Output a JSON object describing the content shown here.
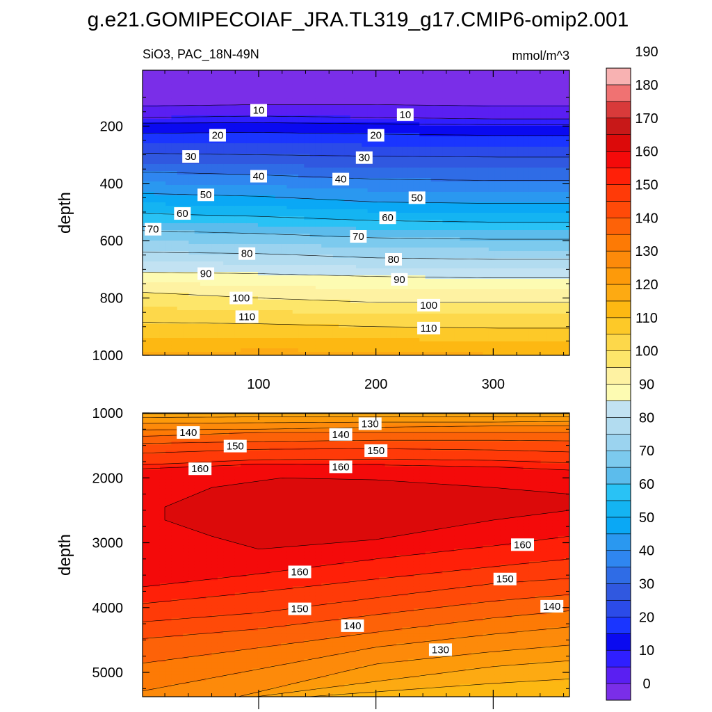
{
  "figure": {
    "title": "g.e21.GOMIPECOIAF_JRA.TL319_g17.CMIP6-omip2.001"
  },
  "chart_data": [
    {
      "type": "heatmap",
      "panel": "upper",
      "left_string": "SiO3, PAC_18N-49N",
      "right_string": "mmol/m^3",
      "ylabel": "depth",
      "xlabel": "",
      "xlim": [
        1,
        365
      ],
      "ylim": [
        1000,
        5
      ],
      "y_reversed": true,
      "x_ticks": [
        100,
        200,
        300
      ],
      "y_ticks": [
        200,
        400,
        600,
        800,
        1000
      ],
      "contour_interval": 5,
      "contour_levels_labeled": [
        10,
        20,
        30,
        40,
        50,
        60,
        70,
        80,
        90,
        100,
        110
      ],
      "isoline_depths": {
        "x": [
          1,
          100,
          200,
          300,
          365
        ],
        "levels": {
          "5": [
            130,
            125,
            125,
            130,
            130
          ],
          "10": [
            170,
            165,
            170,
            175,
            175
          ],
          "15": [
            190,
            188,
            192,
            195,
            195
          ],
          "20": [
            225,
            222,
            228,
            232,
            232
          ],
          "30": [
            295,
            300,
            305,
            308,
            308
          ],
          "40": [
            360,
            370,
            385,
            390,
            390
          ],
          "50": [
            435,
            445,
            465,
            470,
            470
          ],
          "60": [
            505,
            515,
            530,
            535,
            535
          ],
          "70": [
            565,
            575,
            590,
            595,
            595
          ],
          "80": [
            640,
            645,
            660,
            665,
            665
          ],
          "90": [
            710,
            715,
            725,
            730,
            730
          ],
          "100": [
            780,
            800,
            815,
            815,
            815
          ],
          "110": [
            885,
            890,
            900,
            905,
            905
          ]
        }
      },
      "contour_labels": [
        {
          "x": 100,
          "y": 145,
          "text": "10"
        },
        {
          "x": 225,
          "y": 160,
          "text": "10"
        },
        {
          "x": 65,
          "y": 232,
          "text": "20"
        },
        {
          "x": 200,
          "y": 232,
          "text": "20"
        },
        {
          "x": 42,
          "y": 306,
          "text": "30"
        },
        {
          "x": 190,
          "y": 310,
          "text": "30"
        },
        {
          "x": 100,
          "y": 375,
          "text": "40"
        },
        {
          "x": 170,
          "y": 385,
          "text": "40"
        },
        {
          "x": 55,
          "y": 440,
          "text": "50"
        },
        {
          "x": 235,
          "y": 450,
          "text": "50"
        },
        {
          "x": 35,
          "y": 505,
          "text": "60"
        },
        {
          "x": 210,
          "y": 520,
          "text": "60"
        },
        {
          "x": 10,
          "y": 560,
          "text": "70"
        },
        {
          "x": 185,
          "y": 585,
          "text": "70"
        },
        {
          "x": 90,
          "y": 645,
          "text": "80"
        },
        {
          "x": 215,
          "y": 665,
          "text": "80"
        },
        {
          "x": 55,
          "y": 715,
          "text": "90"
        },
        {
          "x": 220,
          "y": 735,
          "text": "90"
        },
        {
          "x": 85,
          "y": 800,
          "text": "100"
        },
        {
          "x": 245,
          "y": 825,
          "text": "100"
        },
        {
          "x": 90,
          "y": 865,
          "text": "110"
        },
        {
          "x": 245,
          "y": 905,
          "text": "110"
        }
      ]
    },
    {
      "type": "heatmap",
      "panel": "lower",
      "ylabel": "depth",
      "xlabel": "",
      "xlim": [
        1,
        365
      ],
      "ylim": [
        5375,
        1000
      ],
      "y_reversed": true,
      "y_ticks": [
        1000,
        2000,
        3000,
        4000,
        5000
      ],
      "contour_interval": 5,
      "contour_levels_labeled": [
        130,
        140,
        150,
        160
      ],
      "upper_isoline_depths": {
        "x": [
          1,
          100,
          200,
          300,
          365
        ],
        "levels": {
          "120": [
            1010,
            1010,
            1010,
            1010,
            1010
          ],
          "125": [
            1070,
            1060,
            1060,
            1060,
            1060
          ],
          "130": [
            1160,
            1150,
            1140,
            1140,
            1130
          ],
          "135": [
            1260,
            1250,
            1220,
            1200,
            1200
          ],
          "140": [
            1360,
            1300,
            1300,
            1300,
            1300
          ],
          "145": [
            1470,
            1440,
            1420,
            1420,
            1430
          ],
          "150": [
            1620,
            1560,
            1550,
            1570,
            1600
          ],
          "155": [
            1800,
            1720,
            1710,
            1730,
            1770
          ],
          "160": [
            1860,
            1790,
            1800,
            1830,
            1880
          ]
        }
      },
      "core_165": {
        "top": {
          "x": [
            20,
            60,
            120,
            200,
            300,
            365
          ],
          "y": [
            2450,
            2150,
            2000,
            2030,
            2150,
            2250
          ]
        },
        "bottom": {
          "x": [
            20,
            60,
            100,
            200,
            300,
            365
          ],
          "y": [
            2650,
            2900,
            3100,
            2950,
            2650,
            2500
          ]
        }
      },
      "lower_isoline_depths": {
        "x": [
          1,
          100,
          200,
          300,
          365
        ],
        "levels": {
          "160": [
            3680,
            3480,
            3250,
            3050,
            2900
          ],
          "155": [
            3940,
            3760,
            3560,
            3370,
            3250
          ],
          "150": [
            4220,
            4080,
            3850,
            3630,
            3550
          ],
          "145": [
            4480,
            4330,
            4110,
            3900,
            3800
          ],
          "140": [
            null,
            4620,
            4380,
            4160,
            4050
          ],
          "135": [
            null,
            4950,
            4610,
            4410,
            4300
          ],
          "130": [
            null,
            5300,
            4870,
            4680,
            4580
          ],
          "125": [
            null,
            null,
            5140,
            4910,
            4820
          ],
          "120": [
            null,
            null,
            5300,
            5170,
            5100
          ]
        }
      },
      "contour_labels": [
        {
          "x": 40,
          "y": 1300,
          "text": "140"
        },
        {
          "x": 170,
          "y": 1330,
          "text": "140"
        },
        {
          "x": 195,
          "y": 1165,
          "text": "130"
        },
        {
          "x": 80,
          "y": 1510,
          "text": "150"
        },
        {
          "x": 200,
          "y": 1580,
          "text": "150"
        },
        {
          "x": 50,
          "y": 1860,
          "text": "160"
        },
        {
          "x": 170,
          "y": 1830,
          "text": "160"
        },
        {
          "x": 325,
          "y": 3030,
          "text": "160"
        },
        {
          "x": 135,
          "y": 3450,
          "text": "160"
        },
        {
          "x": 310,
          "y": 3560,
          "text": "150"
        },
        {
          "x": 135,
          "y": 4020,
          "text": "150"
        },
        {
          "x": 350,
          "y": 3980,
          "text": "140"
        },
        {
          "x": 180,
          "y": 4280,
          "text": "140"
        },
        {
          "x": 255,
          "y": 4650,
          "text": "130"
        }
      ]
    }
  ],
  "colorbar": {
    "tick_labels": [
      "0",
      "10",
      "20",
      "30",
      "40",
      "50",
      "60",
      "70",
      "80",
      "90",
      "100",
      "110",
      "120",
      "130",
      "140",
      "150",
      "160",
      "170",
      "180",
      "190"
    ],
    "levels": [
      0,
      5,
      10,
      15,
      20,
      25,
      30,
      35,
      40,
      45,
      50,
      55,
      60,
      65,
      70,
      75,
      80,
      85,
      90,
      95,
      100,
      105,
      110,
      115,
      120,
      125,
      130,
      135,
      140,
      145,
      150,
      155,
      160,
      165,
      170,
      175,
      180,
      185,
      190,
      195
    ],
    "colors": [
      "#7a2ee8",
      "#5a1ff2",
      "#2f1fff",
      "#0a0af0",
      "#1a35ff",
      "#2b4be8",
      "#3058e0",
      "#2f6ce6",
      "#2f86f0",
      "#2a98f0",
      "#0aa8f5",
      "#14b4f2",
      "#29c2f5",
      "#5cbcec",
      "#7ccaee",
      "#9bd3ef",
      "#b2dcf0",
      "#c2e2f2",
      "#fdfbb2",
      "#fef2a2",
      "#fde66a",
      "#fdd84a",
      "#fdc928",
      "#fdb812",
      "#fdaa12",
      "#fd9a0a",
      "#fd8a0a",
      "#fd7a05",
      "#fd6208",
      "#ff4a08",
      "#ff3a08",
      "#ff2008",
      "#f40a0a",
      "#dc0a0a",
      "#c81818",
      "#d83a3a",
      "#f07272",
      "#f8b2b2"
    ]
  }
}
